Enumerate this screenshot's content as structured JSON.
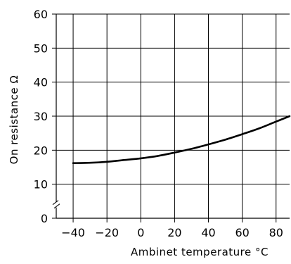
{
  "chart_data": {
    "type": "line",
    "xlabel": "Ambinet  temperature  °C",
    "ylabel": "On  resistance  Ω",
    "xlim": [
      -50,
      88
    ],
    "ylim": [
      0,
      60
    ],
    "x_ticks": [
      -40,
      -20,
      0,
      20,
      40,
      60,
      80
    ],
    "x_tick_labels": [
      "−40",
      "−20",
      "0",
      "20",
      "40",
      "60",
      "80"
    ],
    "y_ticks": [
      0,
      10,
      20,
      30,
      40,
      50,
      60
    ],
    "y_tick_labels": [
      "0",
      "10",
      "20",
      "30",
      "40",
      "50",
      "60"
    ],
    "grid": true,
    "axis_break": "y",
    "series": [
      {
        "x": [
          -40,
          -30,
          -20,
          -10,
          0,
          10,
          20,
          30,
          40,
          50,
          60,
          70,
          80,
          88
        ],
        "values": [
          16.2,
          16.3,
          16.6,
          17.1,
          17.6,
          18.3,
          19.3,
          20.4,
          21.7,
          23.1,
          24.7,
          26.4,
          28.4,
          30.0
        ]
      }
    ]
  }
}
